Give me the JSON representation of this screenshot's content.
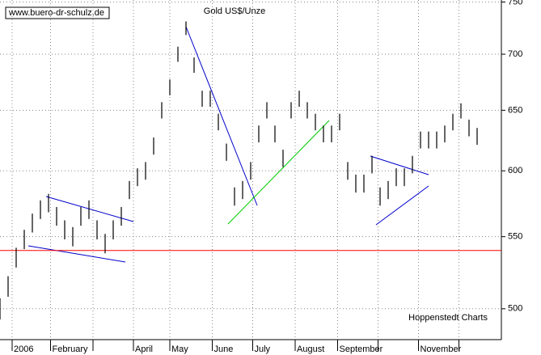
{
  "chart_data": {
    "type": "ohlc",
    "title": "Gold US$/Unze",
    "source": "www.buero-dr-schulz.de",
    "credit": "Hoppenstedt Charts",
    "log_scale": true,
    "color": "#000000",
    "ylim": [
      480,
      752
    ],
    "yticks": [
      500,
      550,
      600,
      650,
      700,
      750
    ],
    "xlim": [
      0,
      248
    ],
    "xticks": [
      {
        "value": 6,
        "label": "2006"
      },
      {
        "value": 25,
        "label": "February"
      },
      {
        "value": 46,
        "label": null
      },
      {
        "value": 66,
        "label": "April"
      },
      {
        "value": 84,
        "label": "May"
      },
      {
        "value": 105,
        "label": "June"
      },
      {
        "value": 125,
        "label": "July"
      },
      {
        "value": 146,
        "label": "August"
      },
      {
        "value": 167,
        "label": "September"
      },
      {
        "value": 187,
        "label": null
      },
      {
        "value": 207,
        "label": "November"
      },
      {
        "value": 227,
        "label": null
      }
    ],
    "hline": {
      "value": 540,
      "color": "#ff0000"
    },
    "x": [
      0,
      4,
      8,
      12,
      16,
      20,
      24,
      28,
      32,
      36,
      40,
      44,
      48,
      52,
      56,
      60,
      64,
      68,
      72,
      76,
      80,
      84,
      88,
      92,
      96,
      100,
      104,
      108,
      112,
      116,
      120,
      124,
      128,
      132,
      136,
      140,
      144,
      148,
      152,
      156,
      160,
      164,
      168,
      172,
      176,
      180,
      184,
      188,
      192,
      196,
      200,
      204,
      208,
      212,
      216,
      220,
      224,
      228,
      232,
      236
    ],
    "high": [
      507,
      522,
      542,
      555,
      567,
      577,
      582,
      572,
      562,
      557,
      572,
      577,
      562,
      552,
      562,
      572,
      592,
      602,
      607,
      627,
      657,
      677,
      707,
      731,
      697,
      667,
      667,
      647,
      622,
      587,
      592,
      607,
      637,
      657,
      637,
      617,
      657,
      667,
      657,
      647,
      637,
      637,
      647,
      607,
      597,
      597,
      612,
      587,
      592,
      602,
      602,
      612,
      632,
      632,
      632,
      637,
      647,
      656,
      642,
      635
    ],
    "low": [
      493,
      508,
      528,
      541,
      553,
      563,
      568,
      558,
      548,
      543,
      558,
      563,
      548,
      538,
      548,
      558,
      578,
      588,
      593,
      613,
      643,
      663,
      693,
      718,
      683,
      653,
      653,
      633,
      608,
      573,
      578,
      593,
      623,
      643,
      623,
      603,
      643,
      653,
      643,
      633,
      623,
      623,
      633,
      593,
      583,
      583,
      598,
      573,
      578,
      588,
      588,
      598,
      618,
      618,
      618,
      623,
      633,
      643,
      628,
      621
    ]
  }
}
